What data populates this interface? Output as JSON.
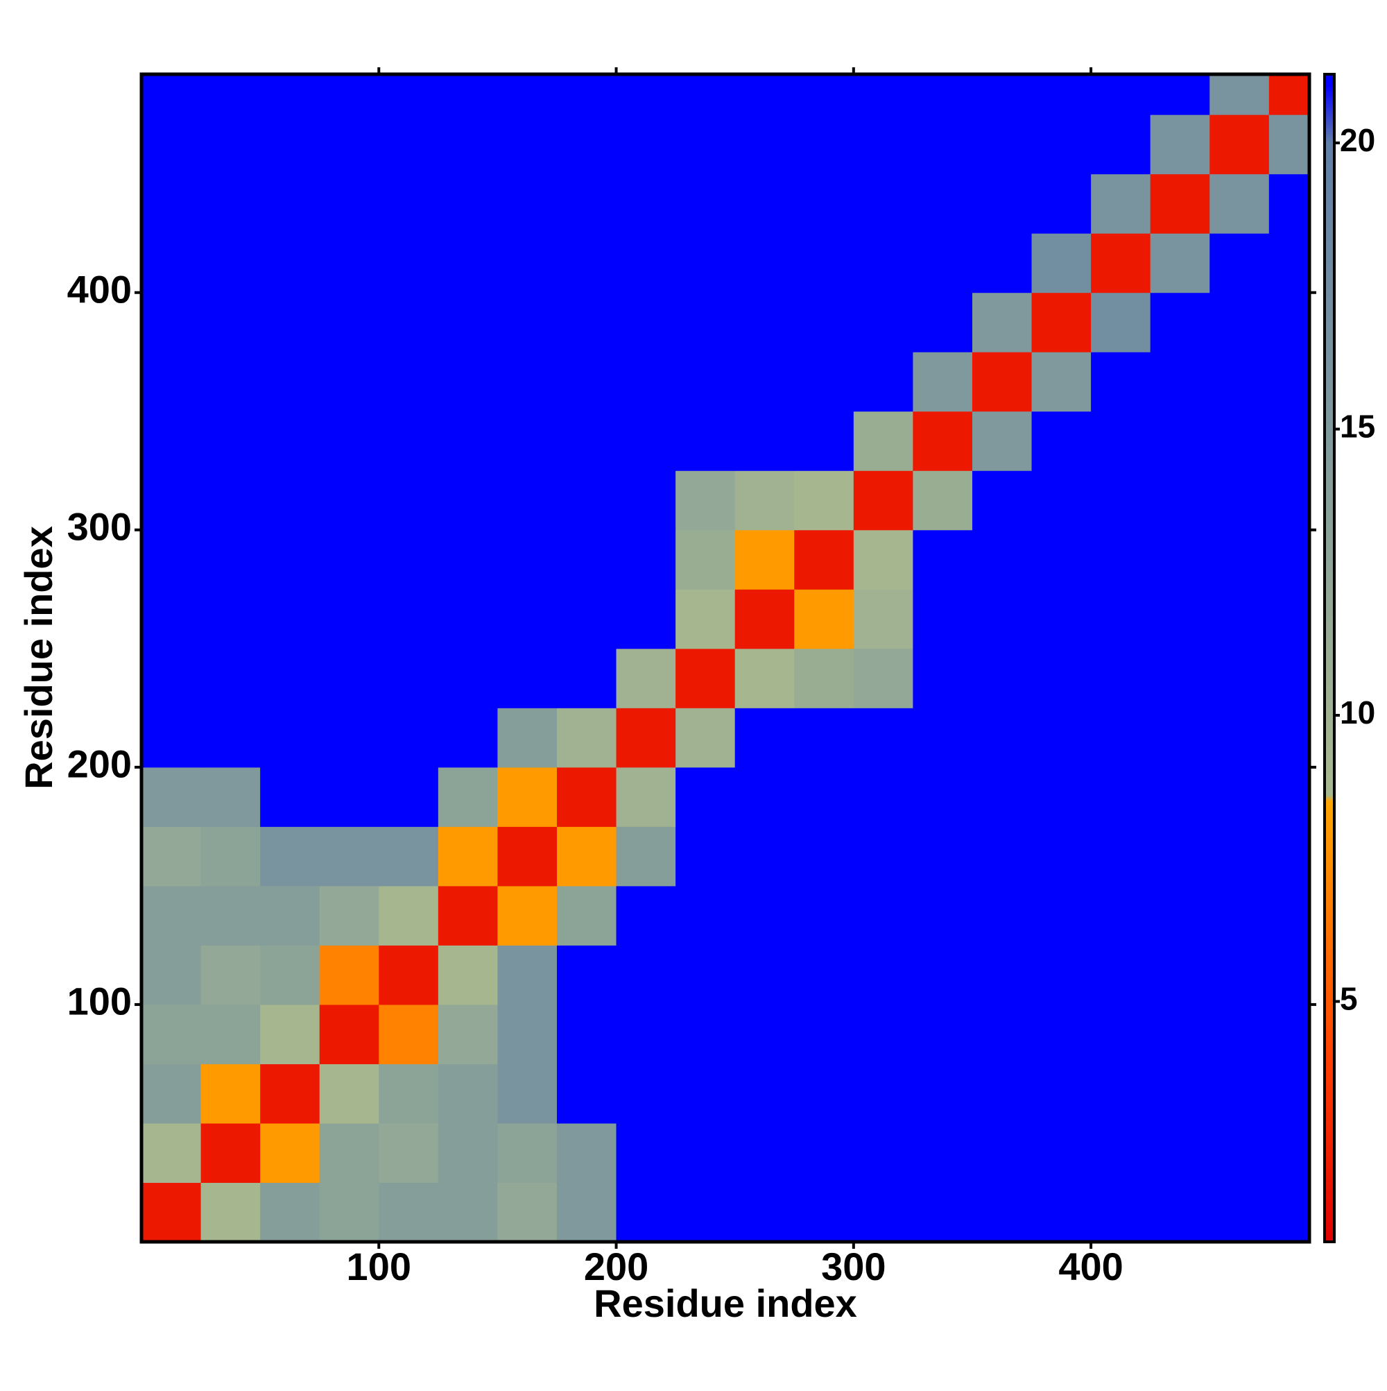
{
  "chart_data": {
    "type": "heatmap",
    "xlabel": "Residue index",
    "ylabel": "Residue index",
    "xlim": [
      0,
      492
    ],
    "ylim": [
      0,
      492
    ],
    "xticks": [
      100,
      200,
      300,
      400
    ],
    "yticks": [
      100,
      200,
      300,
      400
    ],
    "xbins": [
      0,
      25,
      50,
      75,
      100,
      125,
      150,
      175,
      200,
      225,
      250,
      275,
      300,
      325,
      350,
      375,
      400,
      425,
      450,
      475,
      492
    ],
    "ybins": [
      0,
      25,
      50,
      75,
      100,
      125,
      150,
      175,
      200,
      225,
      250,
      275,
      300,
      325,
      350,
      375,
      400,
      425,
      450,
      475,
      492
    ],
    "z": [
      [
        2,
        9,
        14,
        13,
        14,
        14,
        12,
        15,
        21,
        21,
        21,
        21,
        21,
        21,
        21,
        21,
        21,
        21,
        21,
        21
      ],
      [
        9,
        2,
        8,
        13,
        12,
        14,
        13,
        15,
        21,
        21,
        21,
        21,
        21,
        21,
        21,
        21,
        21,
        21,
        21,
        21
      ],
      [
        14,
        8,
        2,
        9,
        13,
        14,
        16,
        21,
        21,
        21,
        21,
        21,
        21,
        21,
        21,
        21,
        21,
        21,
        21,
        21
      ],
      [
        13,
        13,
        9,
        2,
        7,
        12,
        16,
        21,
        21,
        21,
        21,
        21,
        21,
        21,
        21,
        21,
        21,
        21,
        21,
        21
      ],
      [
        14,
        12,
        13,
        7,
        2,
        9,
        16,
        21,
        21,
        21,
        21,
        21,
        21,
        21,
        21,
        21,
        21,
        21,
        21,
        21
      ],
      [
        14,
        14,
        14,
        12,
        9,
        2,
        8,
        13,
        21,
        21,
        21,
        21,
        21,
        21,
        21,
        21,
        21,
        21,
        21,
        21
      ],
      [
        12,
        13,
        16,
        16,
        16,
        8,
        2,
        8,
        14,
        21,
        21,
        21,
        21,
        21,
        21,
        21,
        21,
        21,
        21,
        21
      ],
      [
        15,
        15,
        21,
        21,
        21,
        13,
        8,
        2,
        10,
        21,
        21,
        21,
        21,
        21,
        21,
        21,
        21,
        21,
        21,
        21
      ],
      [
        21,
        21,
        21,
        21,
        21,
        21,
        14,
        10,
        2,
        10,
        21,
        21,
        21,
        21,
        21,
        21,
        21,
        21,
        21,
        21
      ],
      [
        21,
        21,
        21,
        21,
        21,
        21,
        21,
        21,
        10,
        2,
        9,
        11,
        12,
        21,
        21,
        21,
        21,
        21,
        21,
        21
      ],
      [
        21,
        21,
        21,
        21,
        21,
        21,
        21,
        21,
        21,
        9,
        2,
        8,
        10,
        21,
        21,
        21,
        21,
        21,
        21,
        21
      ],
      [
        21,
        21,
        21,
        21,
        21,
        21,
        21,
        21,
        21,
        11,
        8,
        2,
        9,
        21,
        21,
        21,
        21,
        21,
        21,
        21
      ],
      [
        21,
        21,
        21,
        21,
        21,
        21,
        21,
        21,
        21,
        12,
        10,
        9,
        2,
        11,
        21,
        21,
        21,
        21,
        21,
        21
      ],
      [
        21,
        21,
        21,
        21,
        21,
        21,
        21,
        21,
        21,
        21,
        21,
        21,
        11,
        2,
        15,
        21,
        21,
        21,
        21,
        21
      ],
      [
        21,
        21,
        21,
        21,
        21,
        21,
        21,
        21,
        21,
        21,
        21,
        21,
        21,
        15,
        2,
        15,
        21,
        21,
        21,
        21
      ],
      [
        21,
        21,
        21,
        21,
        21,
        21,
        21,
        21,
        21,
        21,
        21,
        21,
        21,
        21,
        15,
        2,
        17,
        21,
        21,
        21
      ],
      [
        21,
        21,
        21,
        21,
        21,
        21,
        21,
        21,
        21,
        21,
        21,
        21,
        21,
        21,
        21,
        17,
        2,
        16,
        21,
        21
      ],
      [
        21,
        21,
        21,
        21,
        21,
        21,
        21,
        21,
        21,
        21,
        21,
        21,
        21,
        21,
        21,
        21,
        16,
        2,
        16,
        21
      ],
      [
        21,
        21,
        21,
        21,
        21,
        21,
        21,
        21,
        21,
        21,
        21,
        21,
        21,
        21,
        21,
        21,
        21,
        16,
        2,
        16
      ],
      [
        21,
        21,
        21,
        21,
        21,
        21,
        21,
        21,
        21,
        21,
        21,
        21,
        21,
        21,
        21,
        21,
        21,
        21,
        16,
        2
      ]
    ],
    "clim": [
      0.8,
      21.2
    ],
    "cticks": [
      5,
      10,
      15,
      20
    ],
    "colorscale": [
      [
        0.8,
        "#e00000"
      ],
      [
        4,
        "#ff4000"
      ],
      [
        8.5,
        "#ffa500"
      ],
      [
        8.6,
        "#a9b98e"
      ],
      [
        20,
        "#5f80a8"
      ],
      [
        21,
        "#0000ff"
      ]
    ]
  }
}
